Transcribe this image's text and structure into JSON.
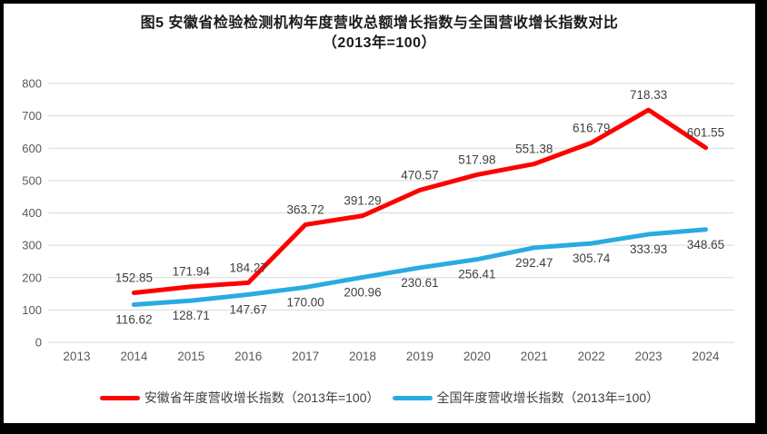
{
  "figure": {
    "title_line1": "图5  安徽省检验检测机构年度营收总额增长指数与全国营收增长指数对比",
    "title_line2": "（2013年=100）"
  },
  "colors": {
    "anhui_line": "#ff0000",
    "national_line": "#29abe2",
    "gridline": "#d9d9d9",
    "axis_text": "#595959",
    "data_label_text": "#404040",
    "frame_border": "#000000"
  },
  "chart_data": {
    "type": "line",
    "title": "图5 安徽省检验检测机构年度营收总额增长指数与全国营收增长指数对比（2013年=100）",
    "categories": [
      "2013",
      "2014",
      "2015",
      "2016",
      "2017",
      "2018",
      "2019",
      "2020",
      "2021",
      "2022",
      "2023",
      "2024"
    ],
    "series": [
      {
        "name": "安徽省年度营收增长指数（2013年=100）",
        "color": "#ff0000",
        "start_index": 1,
        "values": [
          152.85,
          171.94,
          184.27,
          363.72,
          391.29,
          470.57,
          517.98,
          551.38,
          616.79,
          718.33,
          601.55
        ],
        "data_label_position": "above"
      },
      {
        "name": "全国年度营收增长指数（2013年=100）",
        "color": "#29abe2",
        "start_index": 1,
        "values": [
          116.62,
          128.71,
          147.67,
          170.0,
          200.96,
          230.61,
          256.41,
          292.47,
          305.74,
          333.93,
          348.65
        ],
        "data_label_position": "below"
      }
    ],
    "ylim": [
      0,
      800
    ],
    "ytick_step": 100,
    "grid": true,
    "legend_position": "bottom",
    "value_decimals": 2,
    "xlabel": "",
    "ylabel": ""
  }
}
